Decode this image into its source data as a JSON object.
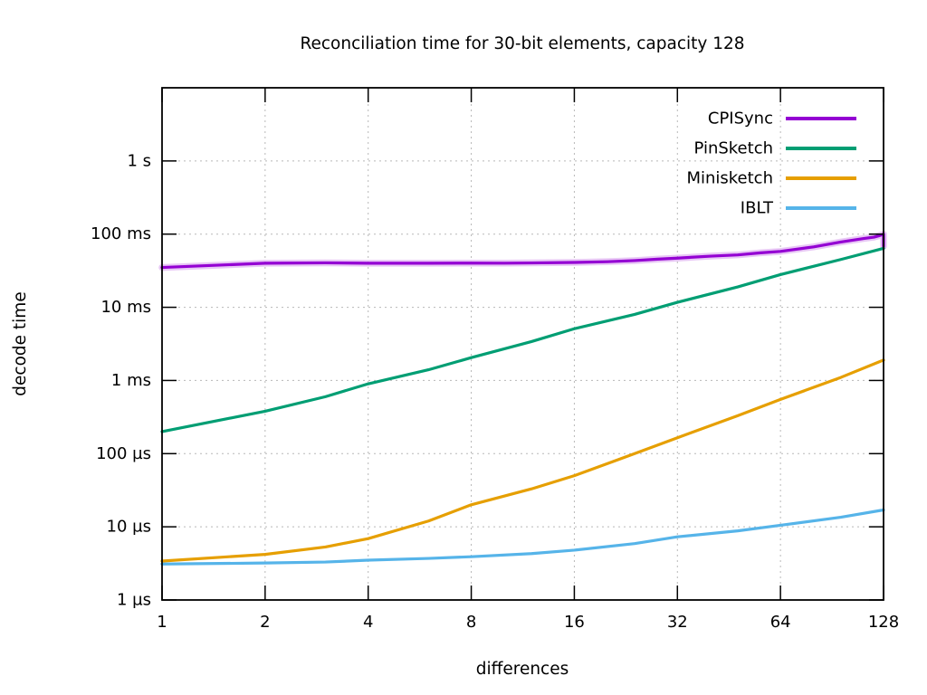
{
  "chart_data": {
    "type": "line",
    "title": "Reconciliation time for 30-bit elements, capacity 128",
    "xlabel": "differences",
    "ylabel": "decode time",
    "x_scale": "log2",
    "y_scale": "log10",
    "xlim": [
      1,
      128
    ],
    "ylim_seconds": [
      1e-06,
      10
    ],
    "grid": true,
    "legend_position": "top-right-inside",
    "x_ticks": [
      {
        "value": 1,
        "label": "1"
      },
      {
        "value": 2,
        "label": "2"
      },
      {
        "value": 4,
        "label": "4"
      },
      {
        "value": 8,
        "label": "8"
      },
      {
        "value": 16,
        "label": "16"
      },
      {
        "value": 32,
        "label": "32"
      },
      {
        "value": 64,
        "label": "64"
      },
      {
        "value": 128,
        "label": "128"
      }
    ],
    "y_ticks": [
      {
        "value": 1,
        "label": "1 s"
      },
      {
        "value": 0.1,
        "label": "100 ms"
      },
      {
        "value": 0.01,
        "label": "10 ms"
      },
      {
        "value": 0.001,
        "label": "1 ms"
      },
      {
        "value": 0.0001,
        "label": "100 µs"
      },
      {
        "value": 1e-05,
        "label": "10 µs"
      },
      {
        "value": 1e-06,
        "label": "1 µs"
      }
    ],
    "series": [
      {
        "name": "CPISync",
        "color": "#9400d3",
        "halo": true,
        "points": [
          [
            1,
            0.035
          ],
          [
            2,
            0.04
          ],
          [
            3,
            0.0405
          ],
          [
            4,
            0.04
          ],
          [
            6,
            0.04
          ],
          [
            8,
            0.0402
          ],
          [
            10,
            0.0401
          ],
          [
            12,
            0.0404
          ],
          [
            16,
            0.041
          ],
          [
            20,
            0.042
          ],
          [
            24,
            0.0435
          ],
          [
            28,
            0.0455
          ],
          [
            32,
            0.047
          ],
          [
            40,
            0.05
          ],
          [
            48,
            0.052
          ],
          [
            56,
            0.0555
          ],
          [
            64,
            0.058
          ],
          [
            80,
            0.067
          ],
          [
            96,
            0.078
          ],
          [
            112,
            0.087
          ],
          [
            120,
            0.091
          ],
          [
            125,
            0.096
          ],
          [
            128,
            0.1
          ],
          [
            128,
            0.068
          ]
        ]
      },
      {
        "name": "PinSketch",
        "color": "#009e73",
        "halo": false,
        "points": [
          [
            1,
            0.0002
          ],
          [
            2,
            0.00038
          ],
          [
            3,
            0.0006
          ],
          [
            4,
            0.0009
          ],
          [
            6,
            0.0014
          ],
          [
            8,
            0.00205
          ],
          [
            12,
            0.0034
          ],
          [
            16,
            0.0051
          ],
          [
            24,
            0.008
          ],
          [
            32,
            0.0117
          ],
          [
            48,
            0.019
          ],
          [
            64,
            0.028
          ],
          [
            96,
            0.045
          ],
          [
            128,
            0.064
          ]
        ]
      },
      {
        "name": "Minisketch",
        "color": "#e69f00",
        "halo": false,
        "points": [
          [
            1,
            3.4e-06
          ],
          [
            2,
            4.2e-06
          ],
          [
            3,
            5.3e-06
          ],
          [
            4,
            6.9e-06
          ],
          [
            6,
            1.2e-05
          ],
          [
            8,
            2e-05
          ],
          [
            12,
            3.3e-05
          ],
          [
            16,
            5e-05
          ],
          [
            24,
            0.0001
          ],
          [
            32,
            0.000165
          ],
          [
            48,
            0.00033
          ],
          [
            64,
            0.00055
          ],
          [
            96,
            0.0011
          ],
          [
            128,
            0.0019
          ]
        ]
      },
      {
        "name": "IBLT",
        "color": "#56b4e9",
        "halo": false,
        "points": [
          [
            1,
            3.1e-06
          ],
          [
            2,
            3.2e-06
          ],
          [
            3,
            3.3e-06
          ],
          [
            4,
            3.5e-06
          ],
          [
            6,
            3.7e-06
          ],
          [
            8,
            3.9e-06
          ],
          [
            12,
            4.3e-06
          ],
          [
            16,
            4.8e-06
          ],
          [
            24,
            5.9e-06
          ],
          [
            32,
            7.3e-06
          ],
          [
            48,
            8.8e-06
          ],
          [
            64,
            1.05e-05
          ],
          [
            96,
            1.35e-05
          ],
          [
            128,
            1.7e-05
          ]
        ]
      }
    ]
  }
}
